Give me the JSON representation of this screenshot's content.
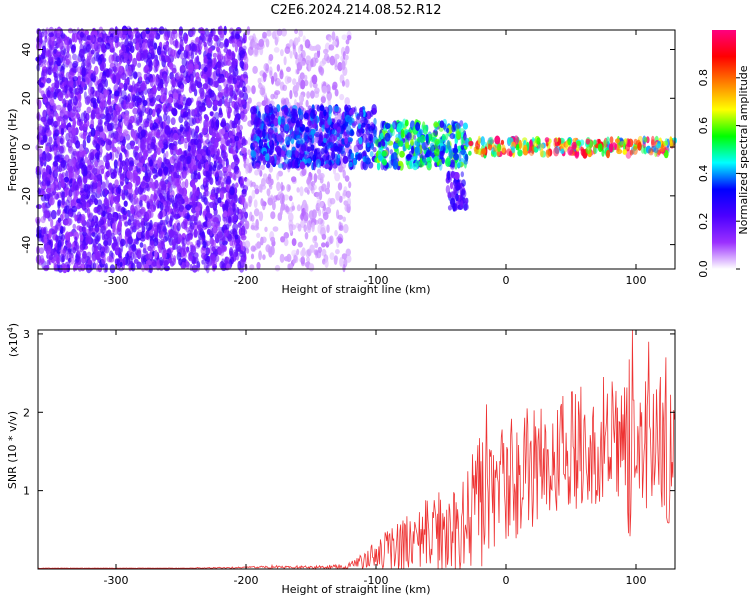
{
  "figure": {
    "title": "C2E6.2024.214.08.52.R12"
  },
  "chart_data": [
    {
      "type": "heatmap",
      "xlabel": "Height of straight line (km)",
      "ylabel": "Frequency (Hz)",
      "xlim": [
        -360,
        130
      ],
      "ylim": [
        -50,
        48
      ],
      "x_ticks": [
        -300,
        -200,
        -100,
        0,
        100
      ],
      "x_tick_labels": [
        "-300",
        "-200",
        "-100",
        "0",
        "100"
      ],
      "y_ticks": [
        -40,
        -20,
        0,
        20,
        40
      ],
      "y_tick_labels": [
        "-40",
        "-20",
        "0",
        "20",
        "40"
      ],
      "grid": false,
      "colorbar": {
        "label": "Normalized spectral amplitude",
        "range": [
          0,
          1
        ],
        "ticks": [
          0.0,
          0.2,
          0.4,
          0.6,
          0.8
        ],
        "tick_labels": [
          "0.0",
          "0.2",
          "0.4",
          "0.6",
          "0.8"
        ],
        "colors": [
          "#ffffff",
          "#9b30ff",
          "#4b00ff",
          "#0000ff",
          "#00ffff",
          "#00ff00",
          "#ffff00",
          "#ff8000",
          "#ff0000",
          "#ff007f"
        ]
      },
      "regions": [
        {
          "x": [
            -360,
            -200
          ],
          "y": [
            -50,
            48
          ],
          "amplitude": 0.18,
          "note_free": true
        },
        {
          "x": [
            -200,
            -120
          ],
          "y": [
            -50,
            48
          ],
          "amplitude": 0.06
        },
        {
          "x": [
            -195,
            -100
          ],
          "y": [
            -8,
            16
          ],
          "amplitude": 0.3
        },
        {
          "x": [
            -100,
            -30
          ],
          "y": [
            -8,
            10
          ],
          "amplitude": 0.45
        },
        {
          "x": [
            -45,
            -30
          ],
          "y": [
            -25,
            -11
          ],
          "amplitude": 0.25
        },
        {
          "x": [
            -30,
            130
          ],
          "y": [
            -3,
            3
          ],
          "amplitude": 0.75
        }
      ]
    },
    {
      "type": "line",
      "xlabel": "Height of straight line (km)",
      "ylabel": "SNR (10 * v/v)",
      "y_multiplier": "(x10",
      "y_multiplier_exp": "4",
      "y_multiplier_close": ")",
      "xlim": [
        -360,
        130
      ],
      "ylim": [
        0,
        3.05
      ],
      "x_ticks": [
        -300,
        -200,
        -100,
        0,
        100
      ],
      "x_tick_labels": [
        "-300",
        "-200",
        "-100",
        "0",
        "100"
      ],
      "y_ticks": [
        1,
        2,
        3
      ],
      "y_tick_labels": [
        "1",
        "2",
        "3"
      ],
      "grid": false,
      "series": [
        {
          "color": "#ee3333",
          "x": [
            -360,
            -300,
            -250,
            -200,
            -180,
            -150,
            -130,
            -120,
            -110,
            -100,
            -90,
            -80,
            -70,
            -60,
            -50,
            -40,
            -30,
            -20,
            -15,
            -10,
            0,
            10,
            20,
            30,
            40,
            50,
            60,
            70,
            80,
            90,
            95,
            100,
            110,
            120,
            130
          ],
          "y": [
            0.01,
            0.01,
            0.01,
            0.02,
            0.03,
            0.02,
            0.03,
            0.05,
            0.1,
            0.2,
            0.25,
            0.3,
            0.4,
            0.45,
            0.5,
            0.6,
            0.7,
            0.9,
            1.05,
            1.0,
            1.1,
            1.2,
            1.3,
            1.4,
            1.45,
            1.5,
            1.55,
            1.5,
            1.6,
            1.55,
            1.5,
            1.6,
            1.5,
            1.55,
            1.4
          ],
          "amplitude": [
            0.003,
            0.003,
            0.003,
            0.01,
            0.02,
            0.02,
            0.03,
            0.05,
            0.1,
            0.2,
            0.25,
            0.35,
            0.4,
            0.5,
            0.6,
            0.7,
            0.75,
            0.9,
            1.0,
            0.8,
            0.8,
            0.8,
            0.8,
            0.8,
            0.8,
            0.8,
            0.8,
            0.8,
            0.8,
            0.85,
            1.4,
            0.9,
            0.9,
            1.0,
            0.9
          ],
          "peaks": [
            [
              -15,
              2.1
            ],
            [
              75,
              2.45
            ],
            [
              97,
              3.05
            ],
            [
              110,
              2.9
            ],
            [
              123,
              2.7
            ]
          ]
        }
      ]
    }
  ]
}
